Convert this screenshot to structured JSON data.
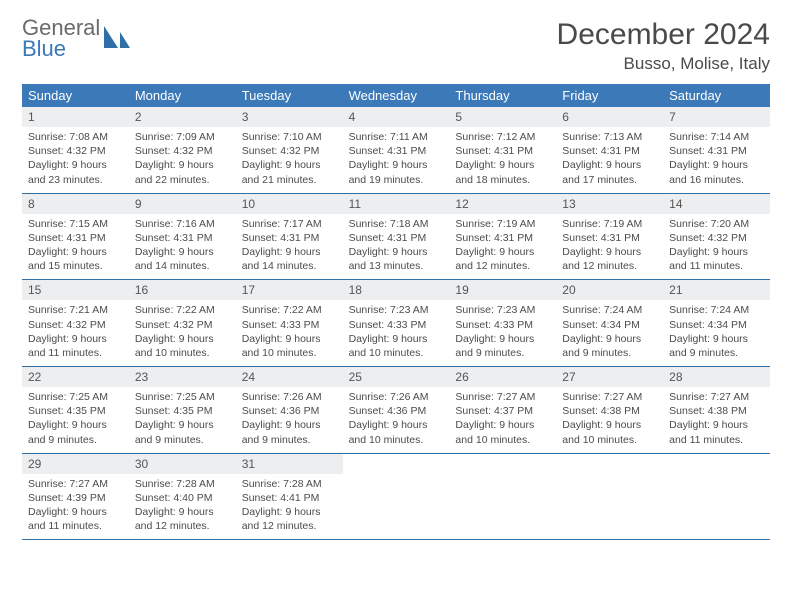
{
  "brand": {
    "top": "General",
    "bottom": "Blue"
  },
  "title": "December 2024",
  "location": "Busso, Molise, Italy",
  "colors": {
    "header_bg": "#3b79b8",
    "daynum_bg": "#eceef0",
    "text": "#4c4c4c",
    "row_border": "#2f6fa8"
  },
  "weekdays": [
    "Sunday",
    "Monday",
    "Tuesday",
    "Wednesday",
    "Thursday",
    "Friday",
    "Saturday"
  ],
  "weeks": [
    [
      {
        "n": "1",
        "sr": "Sunrise: 7:08 AM",
        "ss": "Sunset: 4:32 PM",
        "d1": "Daylight: 9 hours",
        "d2": "and 23 minutes."
      },
      {
        "n": "2",
        "sr": "Sunrise: 7:09 AM",
        "ss": "Sunset: 4:32 PM",
        "d1": "Daylight: 9 hours",
        "d2": "and 22 minutes."
      },
      {
        "n": "3",
        "sr": "Sunrise: 7:10 AM",
        "ss": "Sunset: 4:32 PM",
        "d1": "Daylight: 9 hours",
        "d2": "and 21 minutes."
      },
      {
        "n": "4",
        "sr": "Sunrise: 7:11 AM",
        "ss": "Sunset: 4:31 PM",
        "d1": "Daylight: 9 hours",
        "d2": "and 19 minutes."
      },
      {
        "n": "5",
        "sr": "Sunrise: 7:12 AM",
        "ss": "Sunset: 4:31 PM",
        "d1": "Daylight: 9 hours",
        "d2": "and 18 minutes."
      },
      {
        "n": "6",
        "sr": "Sunrise: 7:13 AM",
        "ss": "Sunset: 4:31 PM",
        "d1": "Daylight: 9 hours",
        "d2": "and 17 minutes."
      },
      {
        "n": "7",
        "sr": "Sunrise: 7:14 AM",
        "ss": "Sunset: 4:31 PM",
        "d1": "Daylight: 9 hours",
        "d2": "and 16 minutes."
      }
    ],
    [
      {
        "n": "8",
        "sr": "Sunrise: 7:15 AM",
        "ss": "Sunset: 4:31 PM",
        "d1": "Daylight: 9 hours",
        "d2": "and 15 minutes."
      },
      {
        "n": "9",
        "sr": "Sunrise: 7:16 AM",
        "ss": "Sunset: 4:31 PM",
        "d1": "Daylight: 9 hours",
        "d2": "and 14 minutes."
      },
      {
        "n": "10",
        "sr": "Sunrise: 7:17 AM",
        "ss": "Sunset: 4:31 PM",
        "d1": "Daylight: 9 hours",
        "d2": "and 14 minutes."
      },
      {
        "n": "11",
        "sr": "Sunrise: 7:18 AM",
        "ss": "Sunset: 4:31 PM",
        "d1": "Daylight: 9 hours",
        "d2": "and 13 minutes."
      },
      {
        "n": "12",
        "sr": "Sunrise: 7:19 AM",
        "ss": "Sunset: 4:31 PM",
        "d1": "Daylight: 9 hours",
        "d2": "and 12 minutes."
      },
      {
        "n": "13",
        "sr": "Sunrise: 7:19 AM",
        "ss": "Sunset: 4:31 PM",
        "d1": "Daylight: 9 hours",
        "d2": "and 12 minutes."
      },
      {
        "n": "14",
        "sr": "Sunrise: 7:20 AM",
        "ss": "Sunset: 4:32 PM",
        "d1": "Daylight: 9 hours",
        "d2": "and 11 minutes."
      }
    ],
    [
      {
        "n": "15",
        "sr": "Sunrise: 7:21 AM",
        "ss": "Sunset: 4:32 PM",
        "d1": "Daylight: 9 hours",
        "d2": "and 11 minutes."
      },
      {
        "n": "16",
        "sr": "Sunrise: 7:22 AM",
        "ss": "Sunset: 4:32 PM",
        "d1": "Daylight: 9 hours",
        "d2": "and 10 minutes."
      },
      {
        "n": "17",
        "sr": "Sunrise: 7:22 AM",
        "ss": "Sunset: 4:33 PM",
        "d1": "Daylight: 9 hours",
        "d2": "and 10 minutes."
      },
      {
        "n": "18",
        "sr": "Sunrise: 7:23 AM",
        "ss": "Sunset: 4:33 PM",
        "d1": "Daylight: 9 hours",
        "d2": "and 10 minutes."
      },
      {
        "n": "19",
        "sr": "Sunrise: 7:23 AM",
        "ss": "Sunset: 4:33 PM",
        "d1": "Daylight: 9 hours",
        "d2": "and 9 minutes."
      },
      {
        "n": "20",
        "sr": "Sunrise: 7:24 AM",
        "ss": "Sunset: 4:34 PM",
        "d1": "Daylight: 9 hours",
        "d2": "and 9 minutes."
      },
      {
        "n": "21",
        "sr": "Sunrise: 7:24 AM",
        "ss": "Sunset: 4:34 PM",
        "d1": "Daylight: 9 hours",
        "d2": "and 9 minutes."
      }
    ],
    [
      {
        "n": "22",
        "sr": "Sunrise: 7:25 AM",
        "ss": "Sunset: 4:35 PM",
        "d1": "Daylight: 9 hours",
        "d2": "and 9 minutes."
      },
      {
        "n": "23",
        "sr": "Sunrise: 7:25 AM",
        "ss": "Sunset: 4:35 PM",
        "d1": "Daylight: 9 hours",
        "d2": "and 9 minutes."
      },
      {
        "n": "24",
        "sr": "Sunrise: 7:26 AM",
        "ss": "Sunset: 4:36 PM",
        "d1": "Daylight: 9 hours",
        "d2": "and 9 minutes."
      },
      {
        "n": "25",
        "sr": "Sunrise: 7:26 AM",
        "ss": "Sunset: 4:36 PM",
        "d1": "Daylight: 9 hours",
        "d2": "and 10 minutes."
      },
      {
        "n": "26",
        "sr": "Sunrise: 7:27 AM",
        "ss": "Sunset: 4:37 PM",
        "d1": "Daylight: 9 hours",
        "d2": "and 10 minutes."
      },
      {
        "n": "27",
        "sr": "Sunrise: 7:27 AM",
        "ss": "Sunset: 4:38 PM",
        "d1": "Daylight: 9 hours",
        "d2": "and 10 minutes."
      },
      {
        "n": "28",
        "sr": "Sunrise: 7:27 AM",
        "ss": "Sunset: 4:38 PM",
        "d1": "Daylight: 9 hours",
        "d2": "and 11 minutes."
      }
    ],
    [
      {
        "n": "29",
        "sr": "Sunrise: 7:27 AM",
        "ss": "Sunset: 4:39 PM",
        "d1": "Daylight: 9 hours",
        "d2": "and 11 minutes."
      },
      {
        "n": "30",
        "sr": "Sunrise: 7:28 AM",
        "ss": "Sunset: 4:40 PM",
        "d1": "Daylight: 9 hours",
        "d2": "and 12 minutes."
      },
      {
        "n": "31",
        "sr": "Sunrise: 7:28 AM",
        "ss": "Sunset: 4:41 PM",
        "d1": "Daylight: 9 hours",
        "d2": "and 12 minutes."
      },
      null,
      null,
      null,
      null
    ]
  ]
}
